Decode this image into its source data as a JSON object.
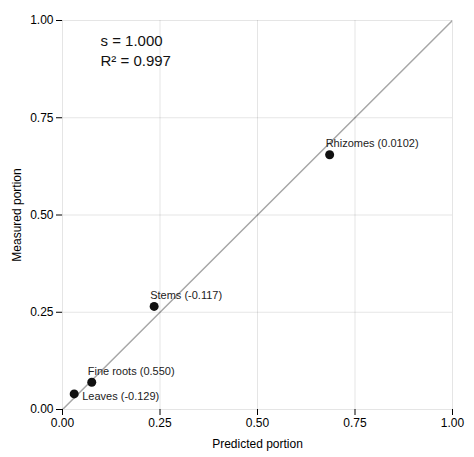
{
  "chart_data": {
    "type": "scatter",
    "x": [
      0.685,
      0.235,
      0.075,
      0.03
    ],
    "values": [
      0.655,
      0.265,
      0.07,
      0.04
    ],
    "labels": [
      "Rhizomes (0.0102)",
      "Stems (-0.117)",
      "Fine roots (0.550)",
      "Leaves (-0.129)"
    ],
    "annotations": [
      "s = 1.000",
      "R² = 0.997"
    ],
    "xlabel": "Predicted portion",
    "ylabel": "Measured portion",
    "xlim": [
      0,
      1.0
    ],
    "ylim": [
      0,
      1.0
    ],
    "xticks": [
      {
        "value": 0,
        "label": "0.00"
      },
      0.25,
      {
        "value": 0.5,
        "label": "0.50"
      },
      0.75,
      {
        "value": 1.0,
        "label": "1.00"
      }
    ],
    "yticks": [
      {
        "value": 0,
        "label": "0.00"
      },
      0.25,
      {
        "value": 0.5,
        "label": "0.50"
      },
      0.75,
      {
        "value": 1.0,
        "label": "1.00"
      }
    ],
    "grid": true,
    "color": "#111111"
  }
}
